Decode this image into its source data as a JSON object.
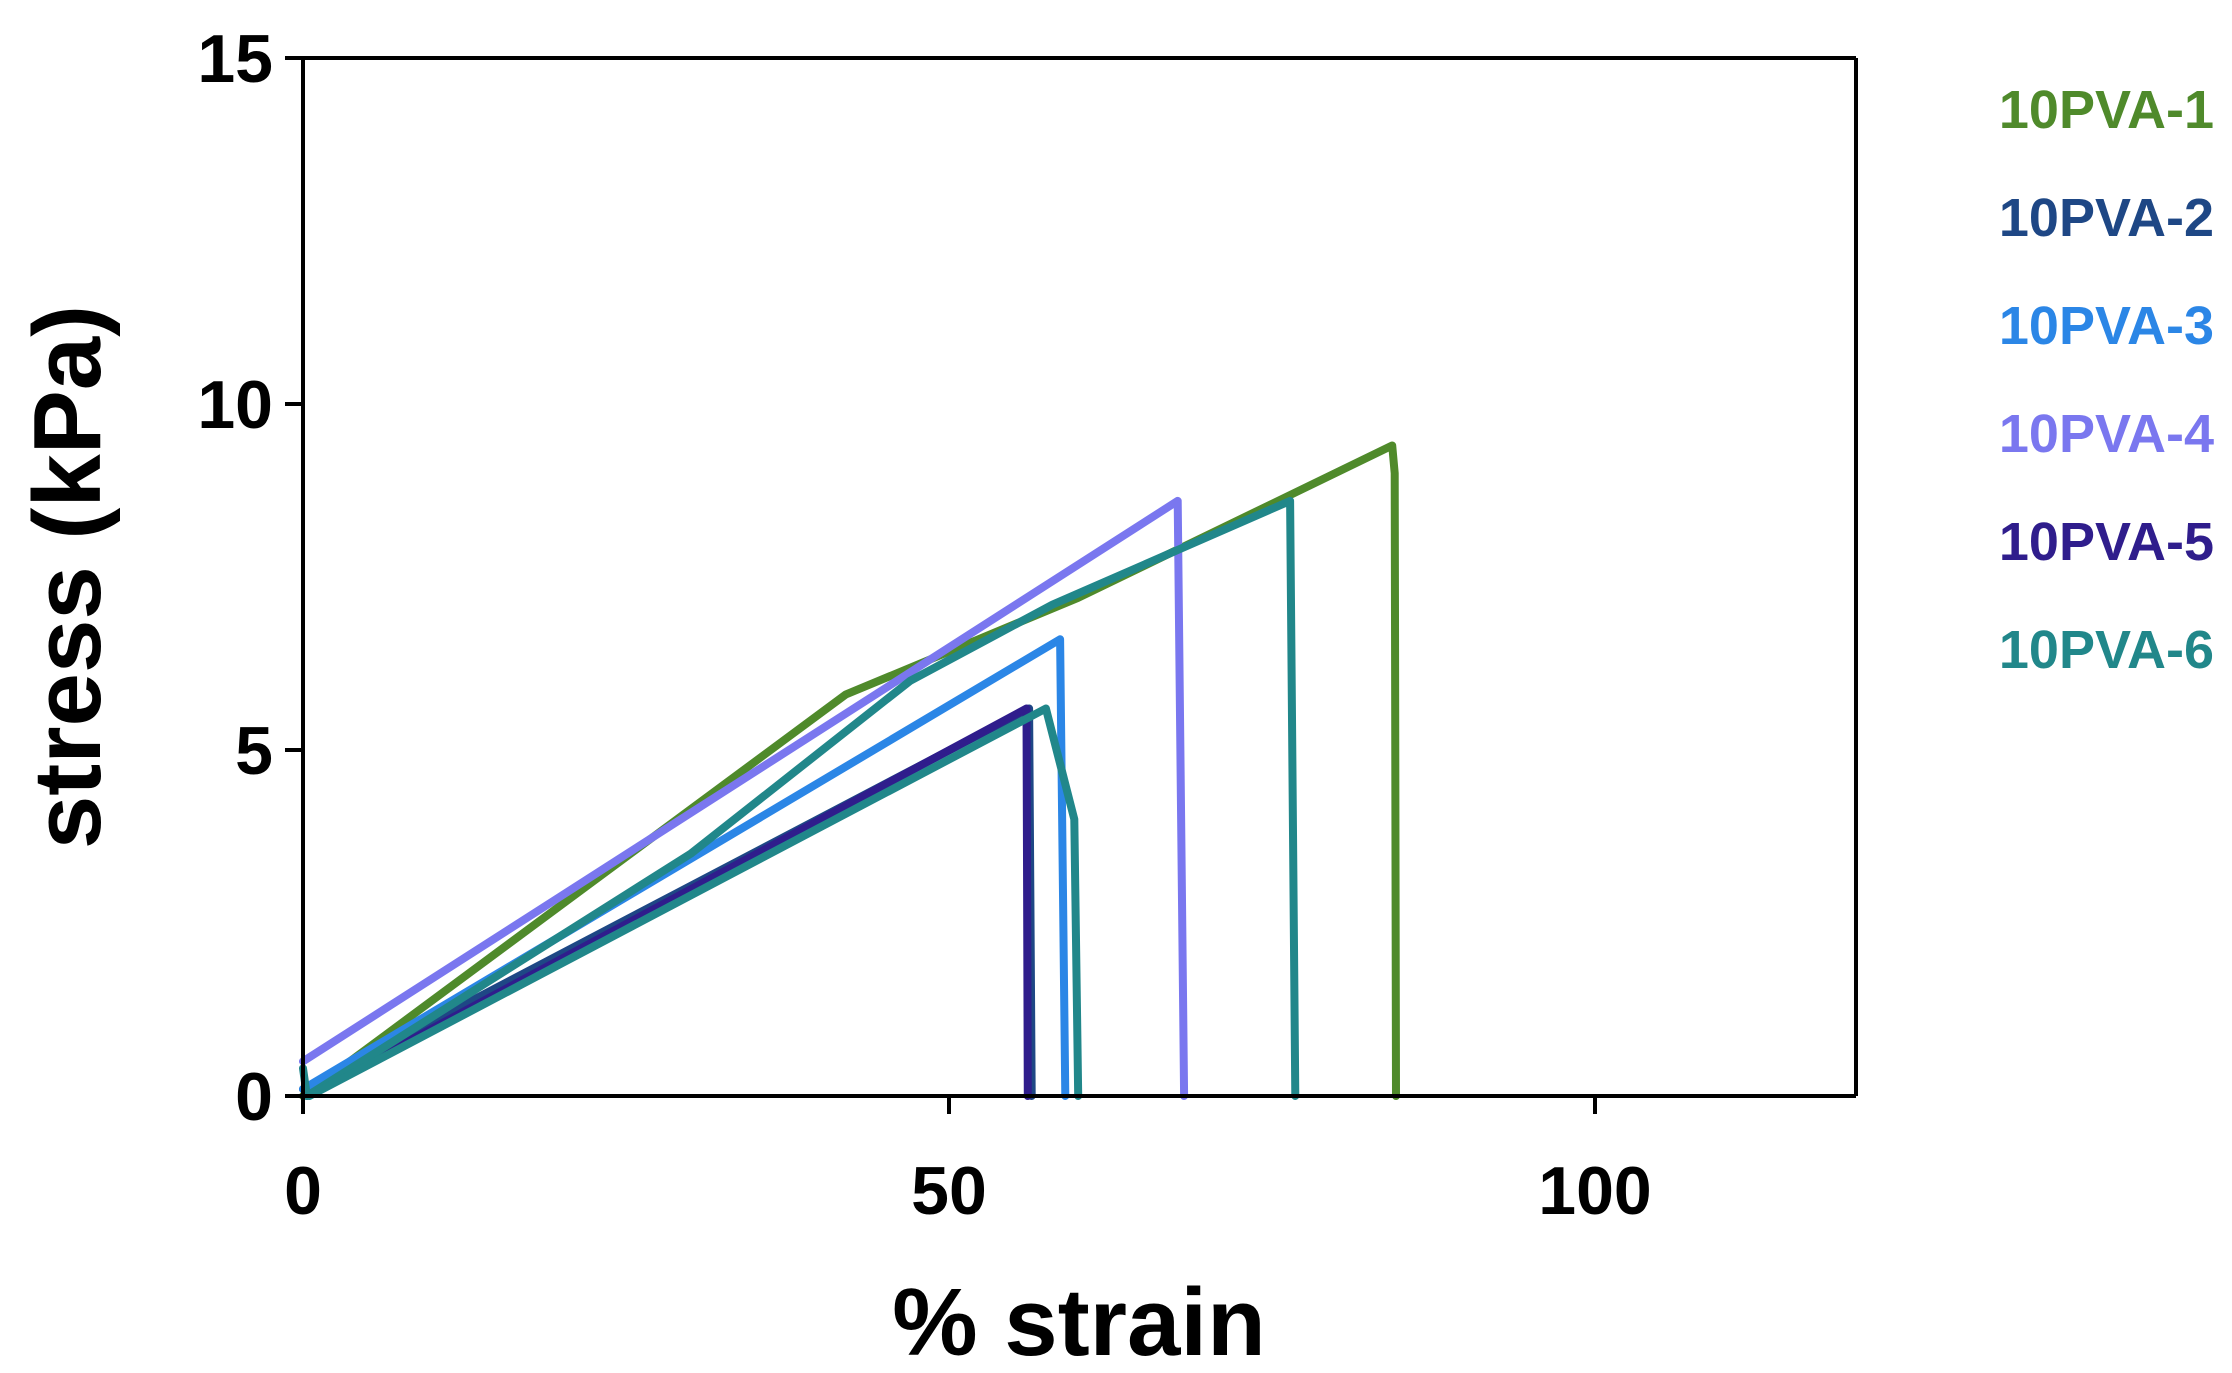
{
  "chart_data": {
    "type": "line",
    "xlabel": "% strain",
    "ylabel": "stress (kPa)",
    "xlim": [
      0,
      120
    ],
    "ylim": [
      0,
      15
    ],
    "x_ticks": [
      "0",
      "50",
      "100"
    ],
    "x_tick_values": [
      0,
      50,
      100
    ],
    "y_ticks": [
      "0",
      "5",
      "10",
      "15"
    ],
    "y_tick_values": [
      0,
      5,
      10,
      15
    ],
    "grid": false,
    "legend_position": "right",
    "series": [
      {
        "name": "10PVA-1",
        "color": "#4f8a2b",
        "points": [
          [
            0,
            0
          ],
          [
            42,
            5.8
          ],
          [
            60,
            7.2
          ],
          [
            84.3,
            9.4
          ],
          [
            84.5,
            9.0
          ],
          [
            84.6,
            0
          ]
        ]
      },
      {
        "name": "10PVA-2",
        "color": "#1e4785",
        "points": [
          [
            0,
            0.1
          ],
          [
            56.2,
            5.6
          ],
          [
            56.4,
            0
          ]
        ]
      },
      {
        "name": "10PVA-3",
        "color": "#2b86e6",
        "points": [
          [
            0,
            0.1
          ],
          [
            58.6,
            6.6
          ],
          [
            59,
            0
          ]
        ]
      },
      {
        "name": "10PVA-4",
        "color": "#7a77ef",
        "points": [
          [
            0,
            0.5
          ],
          [
            67.7,
            8.6
          ],
          [
            68.2,
            0
          ]
        ]
      },
      {
        "name": "10PVA-5",
        "color": "#2f1d8c",
        "points": [
          [
            0.3,
            0
          ],
          [
            56,
            5.6
          ],
          [
            56.1,
            0
          ]
        ]
      },
      {
        "name": "10PVA-6",
        "color": "#21878a",
        "points": [
          [
            0,
            0.4
          ],
          [
            0.3,
            0
          ],
          [
            30,
            3.5
          ],
          [
            47,
            6.0
          ],
          [
            58,
            7.1
          ],
          [
            76.4,
            8.6
          ],
          [
            76.8,
            0
          ]
        ]
      },
      {
        "name": "",
        "color": "#21878a",
        "points": [
          [
            0.5,
            0
          ],
          [
            57.5,
            5.6
          ],
          [
            59.7,
            4.0
          ],
          [
            60,
            0
          ]
        ]
      }
    ]
  }
}
